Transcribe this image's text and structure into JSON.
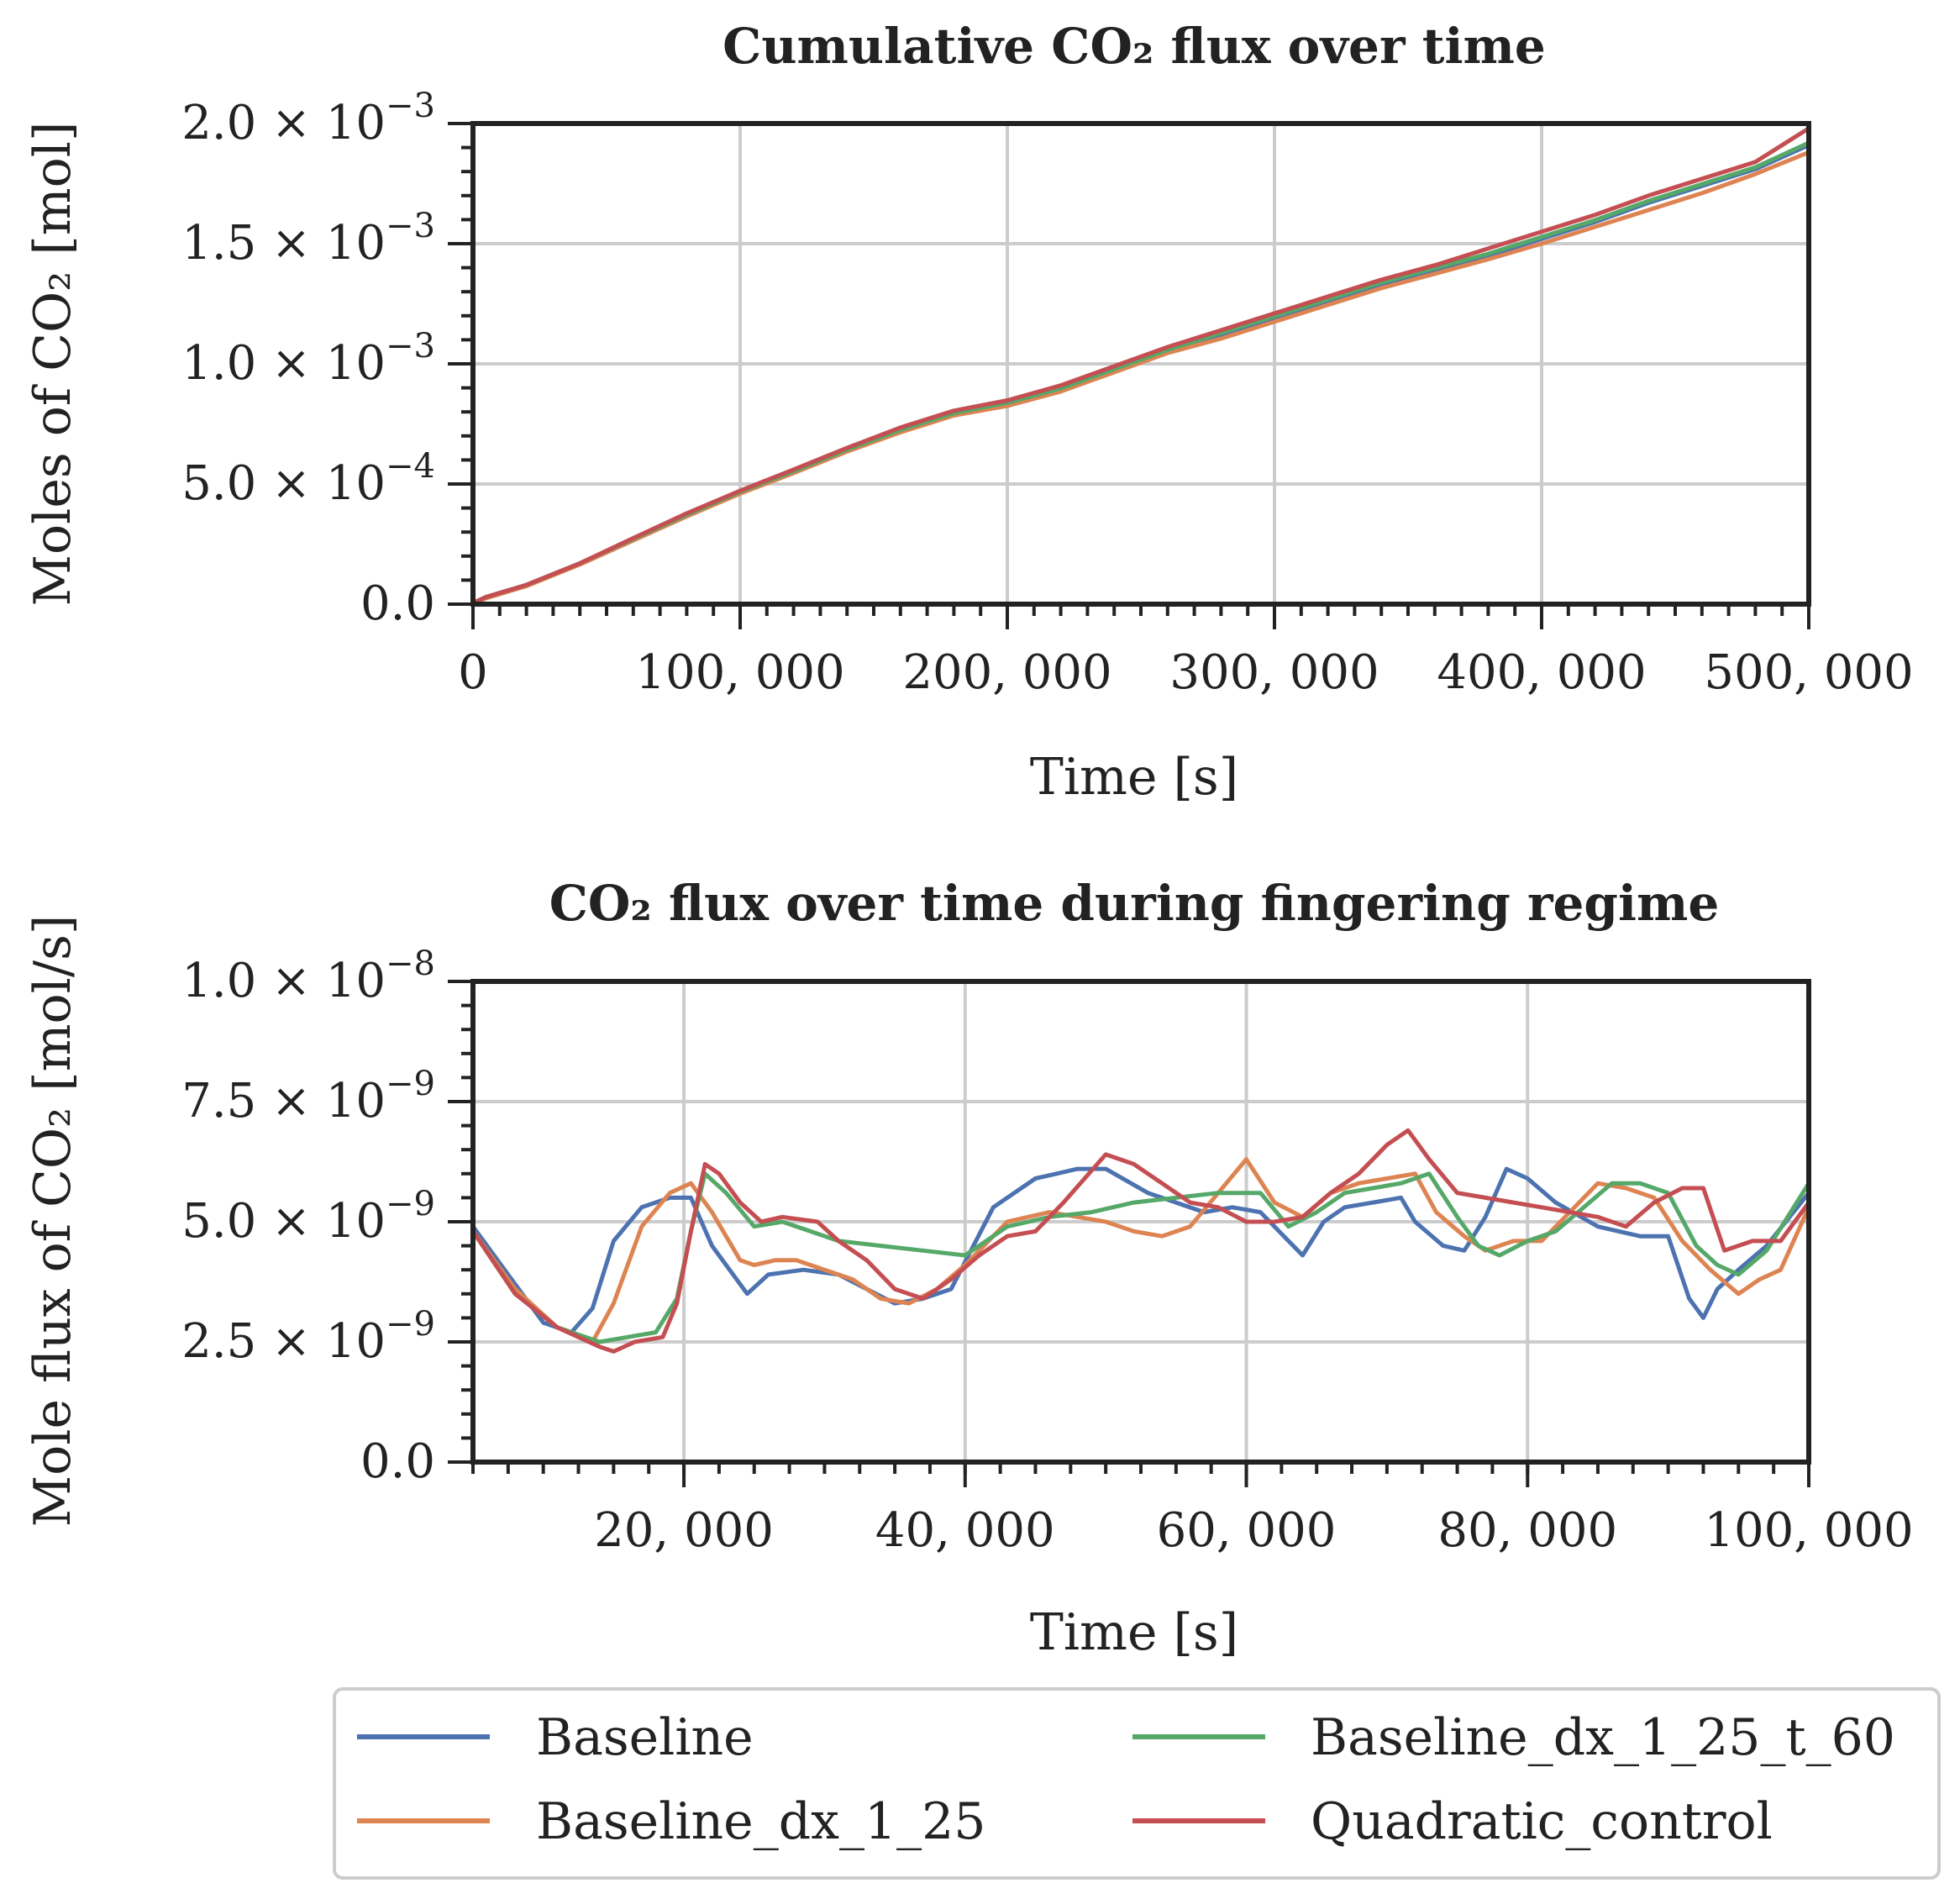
{
  "chart_data": [
    {
      "type": "line",
      "title": "Cumulative CO₂ flux over time",
      "xlabel": "Time [s]",
      "ylabel": "Moles of CO₂ [mol]",
      "xlim": [
        0,
        500000
      ],
      "ylim": [
        0,
        0.002
      ],
      "grid": true,
      "xticks": [
        {
          "value": 0,
          "label": "0"
        },
        {
          "value": 100000,
          "label": "100, 000"
        },
        {
          "value": 200000,
          "label": "200, 000"
        },
        {
          "value": 300000,
          "label": "300, 000"
        },
        {
          "value": 400000,
          "label": "400, 000"
        },
        {
          "value": 500000,
          "label": "500, 000"
        }
      ],
      "yticks": [
        {
          "value": 0,
          "mant": "0.0",
          "exp": ""
        },
        {
          "value": 0.0005,
          "mant": "5.0 × 10",
          "exp": "−4"
        },
        {
          "value": 0.001,
          "mant": "1.0 × 10",
          "exp": "−3"
        },
        {
          "value": 0.0015,
          "mant": "1.5 × 10",
          "exp": "−3"
        },
        {
          "value": 0.002,
          "mant": "2.0 × 10",
          "exp": "−3"
        }
      ],
      "series": [
        {
          "name": "Baseline",
          "color": "#4c72b0",
          "x": [
            0,
            5000,
            20000,
            40000,
            60000,
            80000,
            100000,
            120000,
            140000,
            160000,
            180000,
            200000,
            220000,
            240000,
            260000,
            280000,
            300000,
            320000,
            340000,
            360000,
            380000,
            400000,
            420000,
            440000,
            460000,
            480000,
            500000
          ],
          "y": [
            5e-06,
            3e-05,
            8e-05,
            0.00017,
            0.00027,
            0.00037,
            0.000465,
            0.00055,
            0.00064,
            0.00072,
            0.00079,
            0.00083,
            0.00089,
            0.00097,
            0.00105,
            0.00112,
            0.00119,
            0.00126,
            0.00133,
            0.00139,
            0.00145,
            0.00152,
            0.00159,
            0.00167,
            0.00174,
            0.00181,
            0.00191
          ]
        },
        {
          "name": "Baseline_dx_1_25",
          "color": "#dd8452",
          "x": [
            0,
            5000,
            20000,
            40000,
            60000,
            80000,
            100000,
            120000,
            140000,
            160000,
            180000,
            200000,
            220000,
            240000,
            260000,
            280000,
            300000,
            320000,
            340000,
            360000,
            380000,
            400000,
            420000,
            440000,
            460000,
            480000,
            500000
          ],
          "y": [
            5e-06,
            2.5e-05,
            7.5e-05,
            0.000165,
            0.000265,
            0.000365,
            0.00046,
            0.000545,
            0.000635,
            0.000715,
            0.000785,
            0.000825,
            0.000885,
            0.000965,
            0.001045,
            0.001105,
            0.001175,
            0.001245,
            0.001315,
            0.001375,
            0.001435,
            0.0015,
            0.00157,
            0.00164,
            0.00171,
            0.00179,
            0.00188
          ]
        },
        {
          "name": "Baseline_dx_1_25_t_60",
          "color": "#55a868",
          "x": [
            0,
            5000,
            20000,
            40000,
            60000,
            80000,
            100000,
            120000,
            140000,
            160000,
            180000,
            200000,
            220000,
            240000,
            260000,
            280000,
            300000,
            320000,
            340000,
            360000,
            380000,
            400000,
            420000,
            440000,
            460000,
            480000,
            500000
          ],
          "y": [
            5e-06,
            3e-05,
            8e-05,
            0.00017,
            0.000272,
            0.000372,
            0.000468,
            0.000553,
            0.000643,
            0.000725,
            0.000795,
            0.000838,
            0.000898,
            0.000978,
            0.001058,
            0.001128,
            0.001198,
            0.001268,
            0.001338,
            0.001398,
            0.001458,
            0.001528,
            0.001598,
            0.001678,
            0.001748,
            0.001818,
            0.00192
          ]
        },
        {
          "name": "Quadratic_control",
          "color": "#c44e52",
          "x": [
            0,
            5000,
            20000,
            40000,
            60000,
            80000,
            100000,
            120000,
            140000,
            160000,
            180000,
            200000,
            220000,
            240000,
            260000,
            280000,
            300000,
            320000,
            340000,
            360000,
            380000,
            400000,
            420000,
            440000,
            460000,
            480000,
            500000
          ],
          "y": [
            5e-06,
            3e-05,
            8e-05,
            0.00017,
            0.000275,
            0.000378,
            0.000472,
            0.00056,
            0.00065,
            0.000735,
            0.000805,
            0.000848,
            0.00091,
            0.00099,
            0.00107,
            0.00114,
            0.00121,
            0.00128,
            0.00135,
            0.00141,
            0.00148,
            0.00155,
            0.00162,
            0.0017,
            0.00177,
            0.00184,
            0.00198
          ]
        }
      ]
    },
    {
      "type": "line",
      "title": "CO₂ flux over time during fingering regime",
      "xlabel": "Time [s]",
      "ylabel": "Mole flux of CO₂ [mol/s]",
      "xlim": [
        5000,
        100000
      ],
      "ylim": [
        0,
        1e-08
      ],
      "grid": true,
      "xticks": [
        {
          "value": 20000,
          "label": "20, 000"
        },
        {
          "value": 40000,
          "label": "40, 000"
        },
        {
          "value": 60000,
          "label": "60, 000"
        },
        {
          "value": 80000,
          "label": "80, 000"
        },
        {
          "value": 100000,
          "label": "100, 000"
        }
      ],
      "yticks": [
        {
          "value": 0,
          "mant": "0.0",
          "exp": ""
        },
        {
          "value": 2.5e-09,
          "mant": "2.5 × 10",
          "exp": "−9"
        },
        {
          "value": 5e-09,
          "mant": "5.0 × 10",
          "exp": "−9"
        },
        {
          "value": 7.5e-09,
          "mant": "7.5 × 10",
          "exp": "−9"
        },
        {
          "value": 1e-08,
          "mant": "1.0 × 10",
          "exp": "−8"
        }
      ],
      "series": [
        {
          "name": "Baseline",
          "color": "#4c72b0",
          "x": [
            5000,
            8000,
            10000,
            12000,
            13500,
            15000,
            17000,
            19000,
            20500,
            22000,
            24500,
            26000,
            28500,
            31000,
            33000,
            35000,
            37000,
            39000,
            42000,
            45000,
            48000,
            50000,
            53000,
            57000,
            59000,
            61000,
            63000,
            64000,
            65500,
            67000,
            69000,
            71000,
            72000,
            74000,
            75500,
            77000,
            78500,
            80000,
            82000,
            85000,
            88000,
            90000,
            91500,
            92500,
            93500,
            95000,
            97000,
            100000
          ],
          "y": [
            4.9e-09,
            3.7e-09,
            2.9e-09,
            2.7e-09,
            3.2e-09,
            4.6e-09,
            5.3e-09,
            5.5e-09,
            5.5e-09,
            4.5e-09,
            3.5e-09,
            3.9e-09,
            4e-09,
            3.9e-09,
            3.6e-09,
            3.3e-09,
            3.4e-09,
            3.6e-09,
            5.3e-09,
            5.9e-09,
            6.1e-09,
            6.1e-09,
            5.6e-09,
            5.2e-09,
            5.3e-09,
            5.2e-09,
            4.6e-09,
            4.3e-09,
            5e-09,
            5.3e-09,
            5.4e-09,
            5.5e-09,
            5e-09,
            4.5e-09,
            4.4e-09,
            5.1e-09,
            6.1e-09,
            5.9e-09,
            5.4e-09,
            4.9e-09,
            4.7e-09,
            4.7e-09,
            3.4e-09,
            3e-09,
            3.6e-09,
            4e-09,
            4.5e-09,
            5.6e-09
          ]
        },
        {
          "name": "Baseline_dx_1_25",
          "color": "#dd8452",
          "x": [
            5000,
            8000,
            11000,
            13500,
            15000,
            17000,
            19000,
            20500,
            22000,
            24000,
            25000,
            26500,
            28000,
            30000,
            32000,
            34000,
            36000,
            38000,
            40000,
            43000,
            46000,
            48000,
            50000,
            52000,
            54000,
            56000,
            58000,
            60000,
            62000,
            64000,
            66000,
            68000,
            70000,
            72000,
            73500,
            75500,
            77000,
            79000,
            81000,
            83000,
            85000,
            87000,
            89000,
            91000,
            93000,
            95000,
            96500,
            98000,
            100000
          ],
          "y": [
            4.8e-09,
            3.6e-09,
            2.8e-09,
            2.5e-09,
            3.3e-09,
            4.9e-09,
            5.6e-09,
            5.8e-09,
            5.2e-09,
            4.2e-09,
            4.1e-09,
            4.2e-09,
            4.2e-09,
            4e-09,
            3.8e-09,
            3.4e-09,
            3.3e-09,
            3.6e-09,
            4.1e-09,
            5e-09,
            5.2e-09,
            5.1e-09,
            5e-09,
            4.8e-09,
            4.7e-09,
            4.9e-09,
            5.6e-09,
            6.3e-09,
            5.4e-09,
            5.1e-09,
            5.6e-09,
            5.8e-09,
            5.9e-09,
            6e-09,
            5.2e-09,
            4.7e-09,
            4.4e-09,
            4.6e-09,
            4.6e-09,
            5.2e-09,
            5.8e-09,
            5.7e-09,
            5.5e-09,
            4.6e-09,
            4e-09,
            3.5e-09,
            3.8e-09,
            4e-09,
            5.3e-09
          ]
        },
        {
          "name": "Baseline_dx_1_25_t_60",
          "color": "#55a868",
          "x": [
            5000,
            8000,
            11000,
            14000,
            16000,
            18000,
            19500,
            20500,
            21500,
            23000,
            25000,
            27000,
            29000,
            31000,
            34000,
            37000,
            40000,
            43000,
            46000,
            49000,
            52000,
            55000,
            58000,
            61000,
            63000,
            65000,
            67000,
            69000,
            71000,
            73000,
            75000,
            76500,
            78000,
            80000,
            82000,
            84000,
            86000,
            88000,
            90000,
            92000,
            93500,
            95000,
            97000,
            100000
          ],
          "y": [
            4.8e-09,
            3.5e-09,
            2.8e-09,
            2.5e-09,
            2.6e-09,
            2.7e-09,
            3.4e-09,
            4.8e-09,
            6e-09,
            5.6e-09,
            4.9e-09,
            5e-09,
            4.8e-09,
            4.6e-09,
            4.5e-09,
            4.4e-09,
            4.3e-09,
            4.9e-09,
            5.1e-09,
            5.2e-09,
            5.4e-09,
            5.5e-09,
            5.6e-09,
            5.6e-09,
            4.9e-09,
            5.2e-09,
            5.6e-09,
            5.7e-09,
            5.8e-09,
            6e-09,
            5.1e-09,
            4.5e-09,
            4.3e-09,
            4.6e-09,
            4.8e-09,
            5.3e-09,
            5.8e-09,
            5.8e-09,
            5.6e-09,
            4.5e-09,
            4.1e-09,
            3.9e-09,
            4.4e-09,
            5.8e-09
          ]
        },
        {
          "name": "Quadratic_control",
          "color": "#c44e52",
          "x": [
            5000,
            8000,
            11000,
            14000,
            15000,
            16500,
            18500,
            19500,
            20500,
            21500,
            22500,
            24000,
            25500,
            27000,
            29500,
            31000,
            33000,
            35000,
            37000,
            39000,
            41000,
            43000,
            45000,
            47000,
            50000,
            52000,
            54000,
            56000,
            58000,
            60000,
            62000,
            64000,
            66000,
            68000,
            70000,
            71500,
            73000,
            75000,
            77000,
            79000,
            81000,
            83000,
            85000,
            87000,
            89000,
            91000,
            92500,
            94000,
            96000,
            98000,
            100000
          ],
          "y": [
            4.8e-09,
            3.5e-09,
            2.8e-09,
            2.4e-09,
            2.3e-09,
            2.5e-09,
            2.6e-09,
            3.3e-09,
            4.8e-09,
            6.2e-09,
            6e-09,
            5.4e-09,
            5e-09,
            5.1e-09,
            5e-09,
            4.6e-09,
            4.2e-09,
            3.6e-09,
            3.4e-09,
            3.8e-09,
            4.3e-09,
            4.7e-09,
            4.8e-09,
            5.4e-09,
            6.4e-09,
            6.2e-09,
            5.8e-09,
            5.4e-09,
            5.3e-09,
            5e-09,
            5e-09,
            5.1e-09,
            5.6e-09,
            6e-09,
            6.6e-09,
            6.9e-09,
            6.3e-09,
            5.6e-09,
            5.5e-09,
            5.4e-09,
            5.3e-09,
            5.2e-09,
            5.1e-09,
            4.9e-09,
            5.4e-09,
            5.7e-09,
            5.7e-09,
            4.4e-09,
            4.6e-09,
            4.6e-09,
            5.4e-09
          ]
        }
      ]
    }
  ],
  "legend": {
    "location": "lower-center",
    "entries": [
      {
        "name": "Baseline",
        "color": "#4c72b0"
      },
      {
        "name": "Baseline_dx_1_25",
        "color": "#dd8452"
      },
      {
        "name": "Baseline_dx_1_25_t_60",
        "color": "#55a868"
      },
      {
        "name": "Quadratic_control",
        "color": "#c44e52"
      }
    ]
  }
}
